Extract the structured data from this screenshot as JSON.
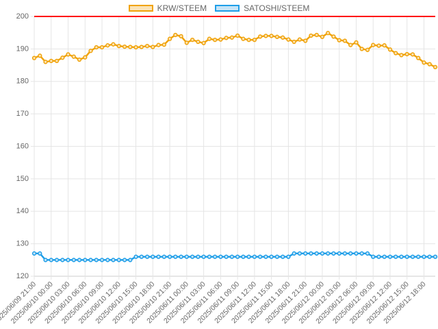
{
  "chart_data": {
    "type": "line",
    "title": "",
    "xlabel": "",
    "ylabel": "",
    "ylim": [
      120,
      200
    ],
    "yticks": [
      120,
      130,
      140,
      150,
      160,
      170,
      180,
      190,
      200
    ],
    "grid": true,
    "legend_position": "top-center",
    "x": [
      "2025/06/09 21:00",
      "2025/06/09 22:00",
      "2025/06/09 23:00",
      "2025/06/10 00:00",
      "2025/06/10 01:00",
      "2025/06/10 02:00",
      "2025/06/10 03:00",
      "2025/06/10 04:00",
      "2025/06/10 05:00",
      "2025/06/10 06:00",
      "2025/06/10 07:00",
      "2025/06/10 08:00",
      "2025/06/10 09:00",
      "2025/06/10 10:00",
      "2025/06/10 11:00",
      "2025/06/10 12:00",
      "2025/06/10 13:00",
      "2025/06/10 14:00",
      "2025/06/10 15:00",
      "2025/06/10 16:00",
      "2025/06/10 17:00",
      "2025/06/10 18:00",
      "2025/06/10 19:00",
      "2025/06/10 20:00",
      "2025/06/10 21:00",
      "2025/06/10 22:00",
      "2025/06/10 23:00",
      "2025/06/11 00:00",
      "2025/06/11 01:00",
      "2025/06/11 02:00",
      "2025/06/11 03:00",
      "2025/06/11 04:00",
      "2025/06/11 05:00",
      "2025/06/11 06:00",
      "2025/06/11 07:00",
      "2025/06/11 08:00",
      "2025/06/11 09:00",
      "2025/06/11 10:00",
      "2025/06/11 11:00",
      "2025/06/11 12:00",
      "2025/06/11 13:00",
      "2025/06/11 14:00",
      "2025/06/11 15:00",
      "2025/06/11 16:00",
      "2025/06/11 17:00",
      "2025/06/11 18:00",
      "2025/06/11 19:00",
      "2025/06/11 20:00",
      "2025/06/11 21:00",
      "2025/06/11 22:00",
      "2025/06/11 23:00",
      "2025/06/12 00:00",
      "2025/06/12 01:00",
      "2025/06/12 02:00",
      "2025/06/12 03:00",
      "2025/06/12 04:00",
      "2025/06/12 05:00",
      "2025/06/12 06:00",
      "2025/06/12 07:00",
      "2025/06/12 08:00",
      "2025/06/12 09:00",
      "2025/06/12 10:00",
      "2025/06/12 11:00",
      "2025/06/12 12:00",
      "2025/06/12 13:00",
      "2025/06/12 14:00",
      "2025/06/12 15:00",
      "2025/06/12 16:00",
      "2025/06/12 17:00",
      "2025/06/12 18:00",
      "2025/06/12 19:00",
      "2025/06/12 20:00"
    ],
    "xtick_labels": [
      "2025/06/09 21:00",
      "2025/06/10 00:00",
      "2025/06/10 03:00",
      "2025/06/10 06:00",
      "2025/06/10 09:00",
      "2025/06/10 12:00",
      "2025/06/10 15:00",
      "2025/06/10 18:00",
      "2025/06/10 21:00",
      "2025/06/11 00:00",
      "2025/06/11 03:00",
      "2025/06/11 06:00",
      "2025/06/11 09:00",
      "2025/06/11 12:00",
      "2025/06/11 15:00",
      "2025/06/11 18:00",
      "2025/06/11 21:00",
      "2025/06/12 00:00",
      "2025/06/12 03:00",
      "2025/06/12 06:00",
      "2025/06/12 09:00",
      "2025/06/12 12:00",
      "2025/06/12 15:00",
      "2025/06/12 18:00"
    ],
    "reference_line": {
      "y": 200,
      "color": "#ff0000"
    },
    "series": [
      {
        "name": "KRW/STEEM",
        "color": "#f0a30a",
        "fill": "#fbe3b5",
        "values": [
          187.2,
          187.9,
          186.0,
          186.3,
          186.3,
          187.3,
          188.3,
          187.6,
          186.7,
          187.4,
          189.4,
          190.5,
          190.5,
          191.1,
          191.4,
          190.9,
          190.7,
          190.6,
          190.5,
          190.6,
          190.9,
          190.6,
          191.2,
          191.3,
          193.1,
          194.3,
          193.9,
          191.9,
          192.8,
          192.2,
          191.8,
          193.1,
          192.8,
          192.9,
          193.4,
          193.5,
          194.1,
          193.1,
          192.8,
          192.8,
          193.8,
          194.0,
          194.0,
          193.7,
          193.5,
          192.9,
          192.2,
          192.9,
          192.5,
          194.1,
          194.3,
          193.7,
          194.9,
          193.8,
          192.7,
          192.5,
          191.2,
          192.0,
          190.0,
          189.7,
          191.2,
          191.0,
          191.1,
          189.8,
          188.7,
          188.1,
          188.4,
          188.3,
          187.2,
          185.8,
          185.3,
          184.4
        ]
      },
      {
        "name": "SATOSHI/STEEM",
        "color": "#1e9ee8",
        "fill": "#c5e4f7",
        "values": [
          127,
          127,
          125,
          125,
          125,
          125,
          125,
          125,
          125,
          125,
          125,
          125,
          125,
          125,
          125,
          125,
          125,
          125,
          126,
          126,
          126,
          126,
          126,
          126,
          126,
          126,
          126,
          126,
          126,
          126,
          126,
          126,
          126,
          126,
          126,
          126,
          126,
          126,
          126,
          126,
          126,
          126,
          126,
          126,
          126,
          126,
          127,
          127,
          127,
          127,
          127,
          127,
          127,
          127,
          127,
          127,
          127,
          127,
          127,
          127,
          126,
          126,
          126,
          126,
          126,
          126,
          126,
          126,
          126,
          126,
          126,
          126
        ]
      }
    ]
  }
}
